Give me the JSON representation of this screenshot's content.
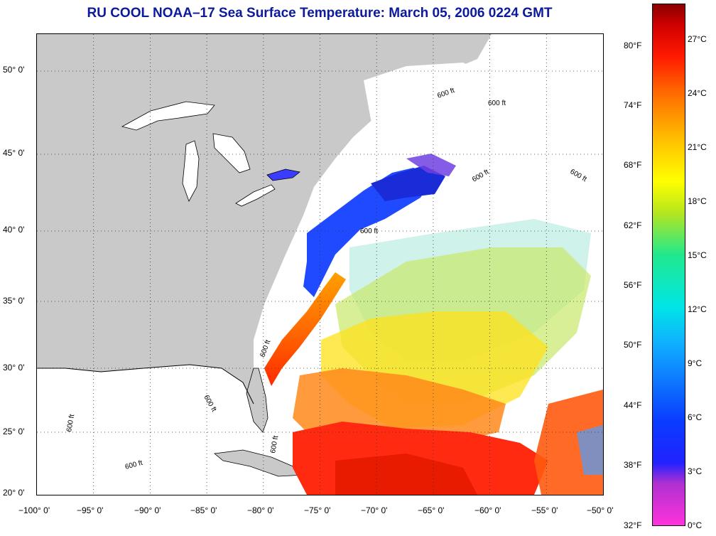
{
  "title": "RU COOL  NOAA–17  Sea Surface Temperature:  March 05, 2006 0224 GMT",
  "map": {
    "lon_range": [
      -100,
      -50
    ],
    "lat_range": [
      20,
      52.5
    ],
    "lon_labels": [
      "−100° 0'",
      "−95° 0'",
      "−90° 0'",
      "−85° 0'",
      "−80° 0'",
      "−75° 0'",
      "−70° 0'",
      "−65° 0'",
      "−60° 0'",
      "−55° 0'",
      "−50° 0'"
    ],
    "lat_labels": [
      "20° 0'",
      "25° 0'",
      "30° 0'",
      "35° 0'",
      "40° 0'",
      "45° 0'",
      "50° 0'"
    ],
    "isobath_label": "600 ft",
    "colors": {
      "land": "#c9c9c9",
      "ocean_nodata": "#ffffff"
    }
  },
  "colorbar": {
    "fahrenheit": [
      "32°F",
      "38°F",
      "44°F",
      "50°F",
      "56°F",
      "62°F",
      "68°F",
      "74°F",
      "80°F"
    ],
    "celsius": [
      "0°C",
      "3°C",
      "6°C",
      "9°C",
      "12°C",
      "15°C",
      "18°C",
      "21°C",
      "24°C",
      "27°C"
    ]
  }
}
